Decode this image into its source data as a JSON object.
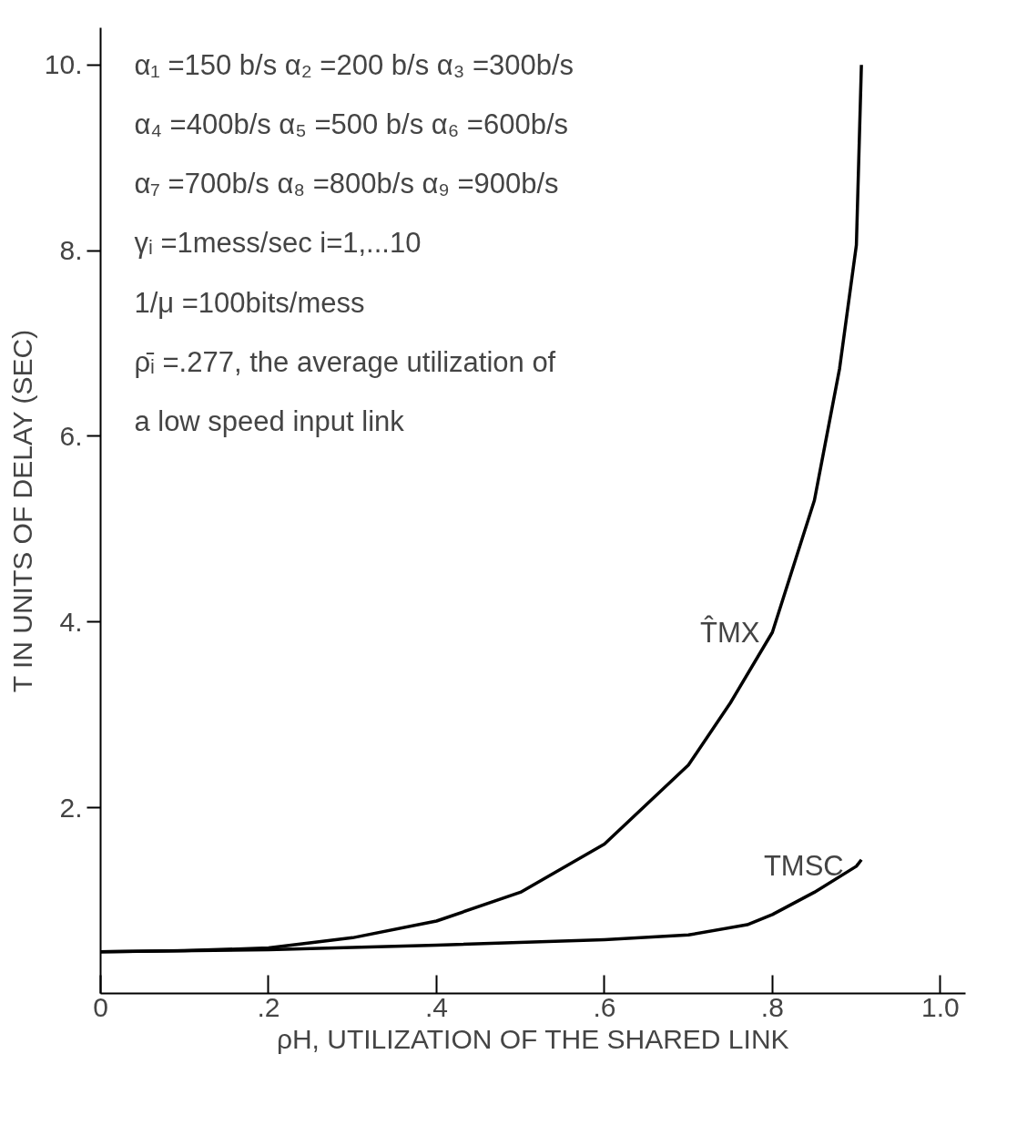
{
  "chart_data": {
    "type": "line",
    "xlabel": "ρH, UTILIZATION OF THE SHARED LINK",
    "ylabel": "T IN UNITS OF DELAY (SEC)",
    "xlim": [
      0,
      1.03
    ],
    "ylim": [
      0,
      10.4
    ],
    "xticks": [
      {
        "value": 0,
        "label": "0"
      },
      {
        "value": 0.2,
        "label": ".2"
      },
      {
        "value": 0.4,
        "label": ".4"
      },
      {
        "value": 0.6,
        "label": ".6"
      },
      {
        "value": 0.8,
        "label": ".8"
      },
      {
        "value": 1.0,
        "label": "1.0"
      }
    ],
    "yticks": [
      {
        "value": 2,
        "label": "2."
      },
      {
        "value": 4,
        "label": "4."
      },
      {
        "value": 6,
        "label": "6."
      },
      {
        "value": 8,
        "label": "8."
      },
      {
        "value": 10,
        "label": "10."
      }
    ],
    "grid": false,
    "marker": "none",
    "line_style": "solid",
    "series": [
      {
        "color": "#000000",
        "x": [
          0,
          0.1,
          0.2,
          0.3,
          0.4,
          0.5,
          0.6,
          0.7,
          0.75,
          0.8,
          0.85,
          0.88,
          0.9,
          0.906
        ],
        "values": [
          0.45,
          0.46,
          0.49,
          0.6,
          0.78,
          1.09,
          1.61,
          2.46,
          3.13,
          3.89,
          5.31,
          6.73,
          8.06,
          10.0
        ]
      },
      {
        "color": "#000000",
        "x": [
          0,
          0.2,
          0.4,
          0.6,
          0.7,
          0.77,
          0.8,
          0.85,
          0.9,
          0.906
        ],
        "values": [
          0.45,
          0.47,
          0.52,
          0.58,
          0.63,
          0.74,
          0.85,
          1.09,
          1.37,
          1.44
        ]
      }
    ],
    "annotations": [
      "α₁ =150 b/s   α₂ =200 b/s   α₃ =300b/s",
      "α₄ =400b/s   α₅ =500 b/s   α₆ =600b/s",
      "α₇ =700b/s   α₈ =800b/s   α₉ =900b/s",
      "γᵢ =1mess/sec   i=1,...10",
      "1/μ =100bits/mess",
      "ρ̄ᵢ =.277, the average utilization of",
      "    a low speed input link",
      {
        "text": "T̂MX",
        "x": 0.8,
        "y": 3.89
      },
      {
        "text": "TMSC",
        "x": 0.9,
        "y": 1.37
      }
    ]
  }
}
